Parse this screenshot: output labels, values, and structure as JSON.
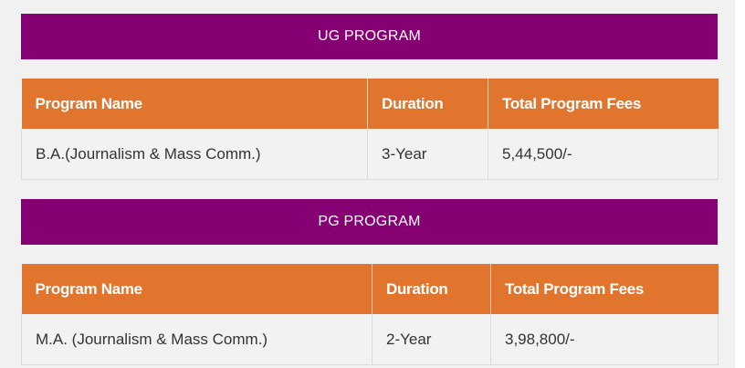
{
  "sections": [
    {
      "title": "UG PROGRAM",
      "headers": [
        "Program Name",
        "Duration",
        "Total Program Fees"
      ],
      "rows": [
        {
          "program": "B.A.(Journalism & Mass Comm.)",
          "duration": "3-Year",
          "fees": "5,44,500/-"
        }
      ]
    },
    {
      "title": "PG PROGRAM",
      "headers": [
        "Program Name",
        "Duration",
        "Total Program Fees"
      ],
      "rows": [
        {
          "program": "M.A. (Journalism & Mass Comm.)",
          "duration": "2-Year",
          "fees": "3,98,800/-"
        }
      ]
    }
  ],
  "colors": {
    "banner": "#860073",
    "header": "#e1752d",
    "cell": "#f2f2f2"
  }
}
